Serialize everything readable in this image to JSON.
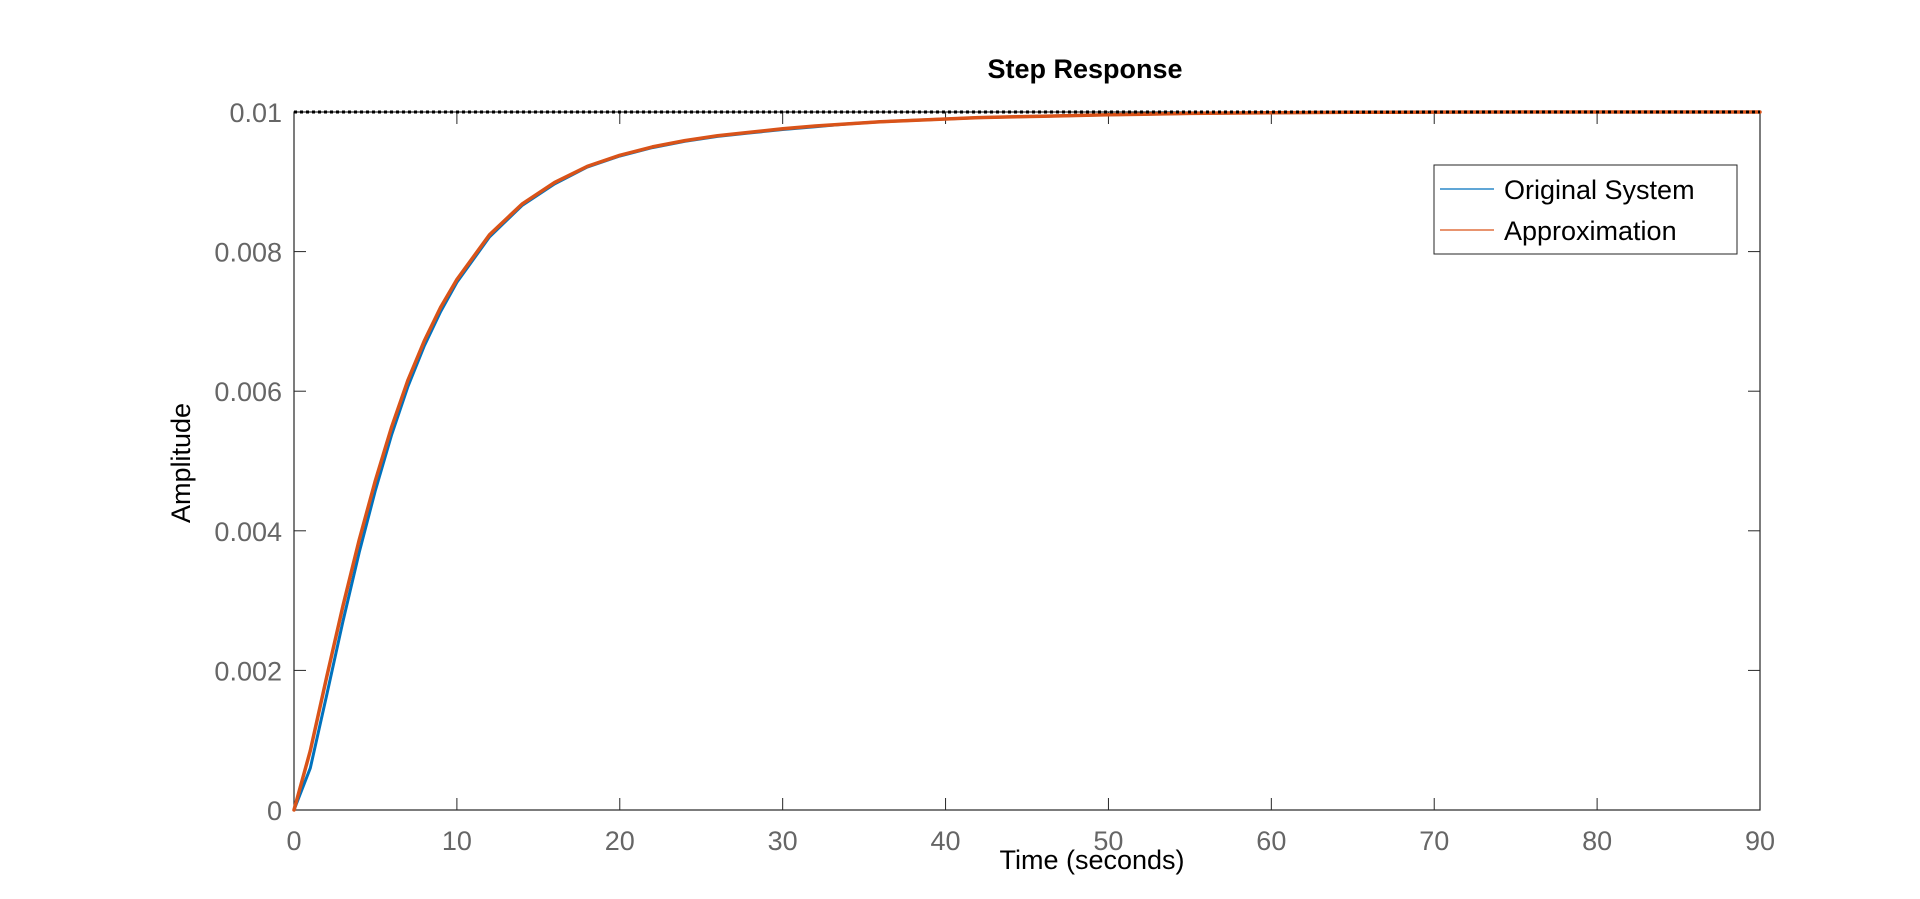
{
  "chart_data": {
    "type": "line",
    "title": "Step Response",
    "xlabel": "Time (seconds)",
    "ylabel": "Amplitude",
    "xlim": [
      0,
      90
    ],
    "ylim": [
      0,
      0.01
    ],
    "xticks": [
      0,
      10,
      20,
      30,
      40,
      50,
      60,
      70,
      80,
      90
    ],
    "yticks": [
      0,
      0.002,
      0.004,
      0.006,
      0.008,
      0.01
    ],
    "xtick_labels": [
      "0",
      "10",
      "20",
      "30",
      "40",
      "50",
      "60",
      "70",
      "80",
      "90"
    ],
    "ytick_labels": [
      "0",
      "0.002",
      "0.004",
      "0.006",
      "0.008",
      "0.01"
    ],
    "grid": false,
    "legend_position": "top-right",
    "reference_line": {
      "y": 0.01,
      "style": "dotted",
      "color": "#000000"
    },
    "series": [
      {
        "name": "Original System",
        "color": "#0072BD",
        "x": [
          0,
          1,
          2,
          3,
          4,
          5,
          6,
          7,
          8,
          9,
          10,
          12,
          14,
          16,
          18,
          20,
          22,
          24,
          26,
          28,
          30,
          32,
          34,
          36,
          38,
          40,
          42,
          44,
          46,
          48,
          50,
          55,
          60,
          65,
          70,
          80,
          90
        ],
        "y": [
          0,
          0.0006,
          0.00164,
          0.0027,
          0.00369,
          0.00458,
          0.00538,
          0.00607,
          0.00665,
          0.00714,
          0.00756,
          0.00821,
          0.00866,
          0.00897,
          0.00921,
          0.00937,
          0.00949,
          0.00958,
          0.00965,
          0.0097,
          0.00975,
          0.00979,
          0.00983,
          0.00986,
          0.00988,
          0.0099,
          0.00992,
          0.00993,
          0.00994,
          0.00995,
          0.00996,
          0.00998,
          0.00999,
          0.009995,
          0.009998,
          0.01,
          0.01
        ]
      },
      {
        "name": "Approximation",
        "color": "#D95319",
        "x": [
          0,
          1,
          2,
          3,
          4,
          5,
          6,
          7,
          8,
          9,
          10,
          12,
          14,
          16,
          18,
          20,
          22,
          24,
          26,
          28,
          30,
          32,
          34,
          36,
          38,
          40,
          42,
          44,
          46,
          48,
          50,
          55,
          60,
          65,
          70,
          80,
          90
        ],
        "y": [
          0,
          0.00085,
          0.0019,
          0.00292,
          0.00387,
          0.00472,
          0.00549,
          0.00616,
          0.00672,
          0.0072,
          0.0076,
          0.00824,
          0.00868,
          0.00899,
          0.00922,
          0.00938,
          0.0095,
          0.00959,
          0.00966,
          0.00971,
          0.00976,
          0.0098,
          0.00983,
          0.00986,
          0.00988,
          0.0099,
          0.00992,
          0.00993,
          0.00994,
          0.00995,
          0.00996,
          0.00998,
          0.00999,
          0.009995,
          0.009998,
          0.01,
          0.01
        ]
      }
    ]
  }
}
